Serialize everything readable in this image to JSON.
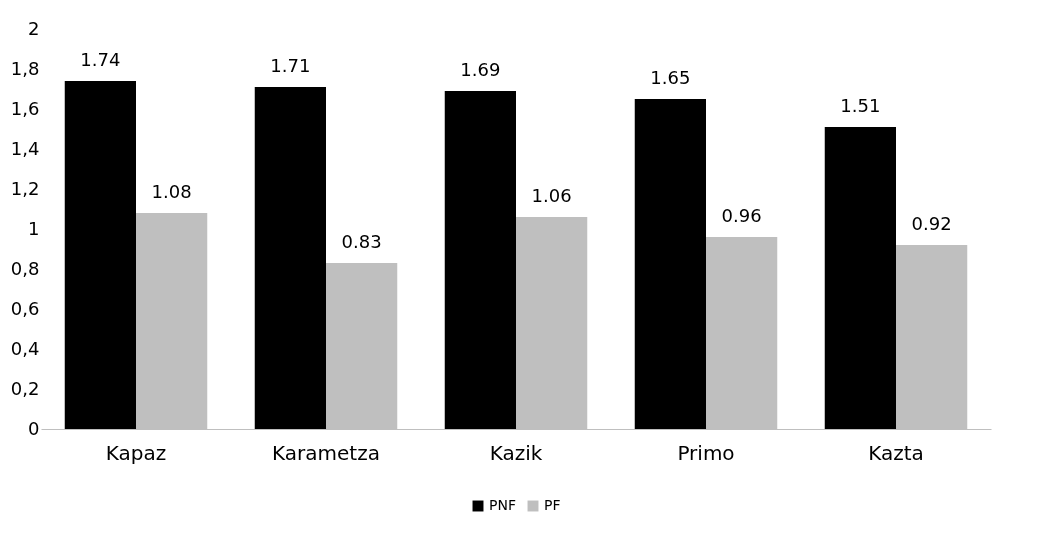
{
  "chart_data": {
    "type": "bar",
    "categories": [
      "Kapaz",
      "Karametza",
      "Kazik",
      "Primo",
      "Kazta"
    ],
    "series": [
      {
        "name": "PNF",
        "color": "#000000",
        "values": [
          1.74,
          1.71,
          1.69,
          1.65,
          1.51
        ]
      },
      {
        "name": "PF",
        "color": "#bfbfbf",
        "values": [
          1.08,
          0.83,
          1.06,
          0.96,
          0.92
        ]
      }
    ],
    "ylim": [
      0,
      2
    ],
    "yticks": [
      0,
      {
        "value": 0.2,
        "label": "0,2"
      },
      {
        "value": 0.4,
        "label": "0,4"
      },
      {
        "value": 0.6,
        "label": "0,6"
      },
      {
        "value": 0.8,
        "label": "0,8"
      },
      1,
      {
        "value": 1.2,
        "label": "1,2"
      },
      {
        "value": 1.4,
        "label": "1,4"
      },
      {
        "value": 1.6,
        "label": "1,6"
      },
      {
        "value": 1.8,
        "label": "1,8"
      },
      2
    ],
    "data_labels": true,
    "grid": false,
    "legend": "bottom"
  }
}
